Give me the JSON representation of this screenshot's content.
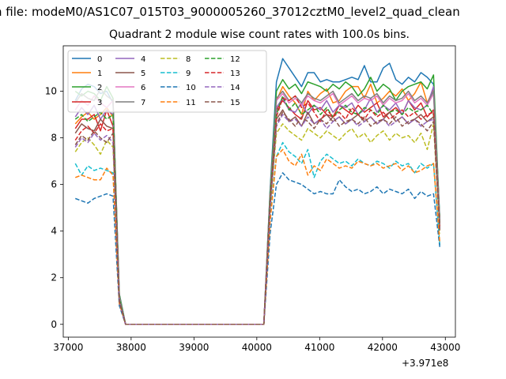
{
  "suptitle": "n file: modeM0/AS1C07_015T03_9000005260_37012cztM0_level2_quad_clean",
  "chart_data": {
    "type": "line",
    "title": "Quadrant 2 module wise count rates with 100.0s bins.",
    "xlabel": "",
    "ylabel": "",
    "x_offset_label": "+3.971e8",
    "xlim": [
      36920,
      43160
    ],
    "ylim": [
      -0.55,
      11.95
    ],
    "x_ticks": [
      37000,
      38000,
      39000,
      40000,
      41000,
      42000,
      43000
    ],
    "x_tick_labels": [
      "37000",
      "38000",
      "39000",
      "40000",
      "41000",
      "42000",
      "43000"
    ],
    "y_ticks": [
      0,
      2,
      4,
      6,
      8,
      10
    ],
    "y_tick_labels": [
      "0",
      "2",
      "4",
      "6",
      "8",
      "10"
    ],
    "grid": false,
    "legend_placement": "top-left",
    "x": [
      37112,
      37212,
      37312,
      37412,
      37512,
      37612,
      37712,
      37812,
      37912,
      38012,
      38112,
      38212,
      38312,
      38412,
      38512,
      38612,
      38712,
      38812,
      38912,
      39012,
      39112,
      39212,
      39312,
      39412,
      39512,
      39612,
      39712,
      39812,
      39912,
      40012,
      40112,
      40212,
      40312,
      40412,
      40512,
      40612,
      40712,
      40812,
      40912,
      41012,
      41112,
      41212,
      41312,
      41412,
      41512,
      41612,
      41712,
      41812,
      41912,
      42012,
      42112,
      42212,
      42312,
      42412,
      42512,
      42612,
      42712,
      42812,
      42912
    ],
    "series": [
      {
        "name": "0",
        "color": "#1f77b4",
        "style": "solid",
        "values": [
          9.6,
          10.1,
          10.3,
          10.2,
          9.9,
          10.0,
          9.5,
          1.3,
          0,
          0,
          0,
          0,
          0,
          0,
          0,
          0,
          0,
          0,
          0,
          0,
          0,
          0,
          0,
          0,
          0,
          0,
          0,
          0,
          0,
          0,
          0,
          5.8,
          10.4,
          11.4,
          11.0,
          10.6,
          10.2,
          10.8,
          10.8,
          10.4,
          10.5,
          10.4,
          10.4,
          10.5,
          10.6,
          10.5,
          11.1,
          10.4,
          10.4,
          11.0,
          11.2,
          10.5,
          10.3,
          10.6,
          10.4,
          10.8,
          10.6,
          10.3,
          4.5
        ]
      },
      {
        "name": "1",
        "color": "#ff7f0e",
        "style": "solid",
        "values": [
          8.6,
          8.9,
          9.1,
          8.8,
          9.0,
          9.3,
          8.9,
          1.2,
          0,
          0,
          0,
          0,
          0,
          0,
          0,
          0,
          0,
          0,
          0,
          0,
          0,
          0,
          0,
          0,
          0,
          0,
          0,
          0,
          0,
          0,
          0,
          5.5,
          9.6,
          10.2,
          9.8,
          9.5,
          9.0,
          10.0,
          9.6,
          9.9,
          10.1,
          9.5,
          9.6,
          10.0,
          10.2,
          10.2,
          9.7,
          10.3,
          9.5,
          9.7,
          10.0,
          9.8,
          10.1,
          9.6,
          9.9,
          10.4,
          9.5,
          10.1,
          4.3
        ]
      },
      {
        "name": "2",
        "color": "#2ca02c",
        "style": "solid",
        "values": [
          10.0,
          9.8,
          10.0,
          9.9,
          9.6,
          10.2,
          9.7,
          1.3,
          0,
          0,
          0,
          0,
          0,
          0,
          0,
          0,
          0,
          0,
          0,
          0,
          0,
          0,
          0,
          0,
          0,
          0,
          0,
          0,
          0,
          0,
          0,
          5.7,
          10.0,
          10.5,
          10.1,
          10.3,
          9.9,
          10.4,
          10.3,
          10.2,
          10.0,
          10.3,
          10.1,
          10.4,
          10.2,
          9.8,
          10.1,
          10.6,
          10.0,
          10.3,
          10.1,
          9.6,
          10.0,
          10.2,
          10.3,
          10.4,
          10.1,
          10.7,
          4.4
        ]
      },
      {
        "name": "3",
        "color": "#d62728",
        "style": "solid",
        "values": [
          8.4,
          8.8,
          8.8,
          9.0,
          8.3,
          9.2,
          8.5,
          1.1,
          0,
          0,
          0,
          0,
          0,
          0,
          0,
          0,
          0,
          0,
          0,
          0,
          0,
          0,
          0,
          0,
          0,
          0,
          0,
          0,
          0,
          0,
          0,
          5.5,
          9.2,
          9.6,
          9.3,
          9.0,
          8.8,
          9.6,
          9.2,
          9.3,
          9.0,
          8.9,
          9.4,
          9.2,
          9.0,
          9.4,
          9.1,
          9.3,
          9.5,
          8.9,
          9.1,
          9.3,
          9.0,
          9.6,
          9.2,
          9.5,
          8.9,
          9.2,
          4.2
        ]
      },
      {
        "name": "4",
        "color": "#9467bd",
        "style": "solid",
        "values": [
          8.9,
          9.3,
          9.0,
          9.4,
          8.8,
          9.2,
          9.0,
          1.2,
          0,
          0,
          0,
          0,
          0,
          0,
          0,
          0,
          0,
          0,
          0,
          0,
          0,
          0,
          0,
          0,
          0,
          0,
          0,
          0,
          0,
          0,
          0,
          5.5,
          9.3,
          9.7,
          9.2,
          9.1,
          9.5,
          9.0,
          9.4,
          9.2,
          9.6,
          9.1,
          9.4,
          9.3,
          9.5,
          9.0,
          9.2,
          9.7,
          9.1,
          9.4,
          9.2,
          9.5,
          9.0,
          9.6,
          9.3,
          9.2,
          9.4,
          10.2,
          4.3
        ]
      },
      {
        "name": "5",
        "color": "#8c564b",
        "style": "solid",
        "values": [
          8.2,
          8.6,
          8.4,
          8.3,
          8.8,
          8.5,
          8.4,
          1.1,
          0,
          0,
          0,
          0,
          0,
          0,
          0,
          0,
          0,
          0,
          0,
          0,
          0,
          0,
          0,
          0,
          0,
          0,
          0,
          0,
          0,
          0,
          0,
          5.3,
          8.8,
          9.2,
          8.7,
          8.9,
          8.5,
          9.1,
          8.6,
          8.8,
          9.0,
          8.7,
          8.9,
          8.6,
          8.8,
          9.0,
          8.7,
          8.9,
          8.6,
          8.8,
          9.1,
          8.7,
          8.9,
          8.6,
          8.8,
          9.0,
          8.7,
          8.9,
          4.1
        ]
      },
      {
        "name": "6",
        "color": "#e377c2",
        "style": "solid",
        "values": [
          9.2,
          9.6,
          9.4,
          9.8,
          9.5,
          9.3,
          9.6,
          1.2,
          0,
          0,
          0,
          0,
          0,
          0,
          0,
          0,
          0,
          0,
          0,
          0,
          0,
          0,
          0,
          0,
          0,
          0,
          0,
          0,
          0,
          0,
          0,
          5.6,
          9.6,
          9.9,
          9.5,
          9.7,
          9.4,
          9.8,
          9.6,
          9.5,
          9.7,
          9.9,
          9.4,
          9.6,
          9.8,
          9.5,
          9.7,
          9.6,
          9.8,
          9.4,
          9.7,
          9.5,
          9.6,
          9.9,
          9.5,
          9.7,
          9.4,
          9.9,
          4.3
        ]
      },
      {
        "name": "7",
        "color": "#7f7f7f",
        "style": "solid",
        "values": [
          9.5,
          9.9,
          9.7,
          9.6,
          10.1,
          9.8,
          9.6,
          1.2,
          0,
          0,
          0,
          0,
          0,
          0,
          0,
          0,
          0,
          0,
          0,
          0,
          0,
          0,
          0,
          0,
          0,
          0,
          0,
          0,
          0,
          0,
          0,
          5.6,
          9.7,
          10.0,
          9.6,
          9.8,
          9.5,
          9.9,
          9.7,
          9.6,
          9.8,
          10.0,
          9.5,
          9.7,
          9.9,
          9.6,
          9.8,
          9.7,
          9.9,
          9.5,
          9.8,
          9.6,
          9.7,
          10.0,
          9.6,
          9.8,
          9.5,
          10.0,
          4.4
        ]
      },
      {
        "name": "8",
        "color": "#bcbd22",
        "style": "dashed",
        "values": [
          7.4,
          7.8,
          8.0,
          7.7,
          7.3,
          7.9,
          7.6,
          1.0,
          0,
          0,
          0,
          0,
          0,
          0,
          0,
          0,
          0,
          0,
          0,
          0,
          0,
          0,
          0,
          0,
          0,
          0,
          0,
          0,
          0,
          0,
          0,
          5.0,
          8.2,
          8.6,
          8.3,
          8.1,
          7.9,
          8.4,
          8.2,
          8.0,
          8.3,
          8.1,
          7.9,
          8.2,
          8.4,
          8.0,
          8.2,
          7.8,
          8.1,
          8.3,
          7.9,
          8.2,
          8.0,
          8.1,
          7.8,
          8.2,
          7.5,
          8.6,
          3.9
        ]
      },
      {
        "name": "9",
        "color": "#17becf",
        "style": "dashed",
        "values": [
          6.9,
          6.4,
          6.8,
          6.6,
          6.7,
          6.6,
          6.5,
          0.9,
          0,
          0,
          0,
          0,
          0,
          0,
          0,
          0,
          0,
          0,
          0,
          0,
          0,
          0,
          0,
          0,
          0,
          0,
          0,
          0,
          0,
          0,
          0,
          4.6,
          7.2,
          7.8,
          7.4,
          7.2,
          6.9,
          7.5,
          6.3,
          7.0,
          7.3,
          7.1,
          6.9,
          7.0,
          6.8,
          7.1,
          6.9,
          6.8,
          7.0,
          6.9,
          6.7,
          7.0,
          6.8,
          6.9,
          6.5,
          6.9,
          6.7,
          6.9,
          3.4
        ]
      },
      {
        "name": "10",
        "color": "#1f77b4",
        "style": "dashed",
        "values": [
          5.4,
          5.3,
          5.2,
          5.4,
          5.5,
          5.6,
          5.5,
          0.8,
          0,
          0,
          0,
          0,
          0,
          0,
          0,
          0,
          0,
          0,
          0,
          0,
          0,
          0,
          0,
          0,
          0,
          0,
          0,
          0,
          0,
          0,
          0,
          3.9,
          6.0,
          6.5,
          6.2,
          6.1,
          6.0,
          5.8,
          5.6,
          5.7,
          5.6,
          5.6,
          6.2,
          5.9,
          5.7,
          5.8,
          5.6,
          5.7,
          5.9,
          5.6,
          5.8,
          5.7,
          5.6,
          5.8,
          5.4,
          5.7,
          5.5,
          5.6,
          3.3
        ]
      },
      {
        "name": "11",
        "color": "#ff7f0e",
        "style": "dashed",
        "values": [
          6.3,
          6.4,
          6.3,
          6.2,
          6.2,
          6.7,
          6.4,
          0.9,
          0,
          0,
          0,
          0,
          0,
          0,
          0,
          0,
          0,
          0,
          0,
          0,
          0,
          0,
          0,
          0,
          0,
          0,
          0,
          0,
          0,
          0,
          0,
          4.4,
          7.2,
          7.5,
          7.0,
          6.8,
          7.3,
          6.4,
          6.8,
          6.6,
          7.1,
          6.9,
          6.7,
          6.8,
          6.7,
          7.0,
          6.9,
          6.8,
          6.9,
          6.7,
          6.8,
          6.9,
          6.6,
          6.8,
          6.5,
          6.6,
          6.8,
          6.9,
          3.5
        ]
      },
      {
        "name": "12",
        "color": "#2ca02c",
        "style": "dashed",
        "values": [
          8.8,
          9.0,
          8.7,
          8.9,
          9.1,
          8.8,
          9.0,
          1.1,
          0,
          0,
          0,
          0,
          0,
          0,
          0,
          0,
          0,
          0,
          0,
          0,
          0,
          0,
          0,
          0,
          0,
          0,
          0,
          0,
          0,
          0,
          0,
          5.4,
          9.0,
          9.8,
          9.2,
          9.5,
          9.0,
          9.2,
          9.4,
          9.0,
          9.3,
          8.9,
          9.2,
          9.4,
          9.1,
          9.0,
          9.3,
          9.2,
          9.0,
          9.4,
          9.1,
          9.2,
          9.0,
          9.3,
          9.1,
          9.2,
          9.4,
          9.0,
          4.3
        ]
      },
      {
        "name": "13",
        "color": "#d62728",
        "style": "dashed",
        "values": [
          7.9,
          8.3,
          8.5,
          8.2,
          8.6,
          8.3,
          8.4,
          1.0,
          0,
          0,
          0,
          0,
          0,
          0,
          0,
          0,
          0,
          0,
          0,
          0,
          0,
          0,
          0,
          0,
          0,
          0,
          0,
          0,
          0,
          0,
          0,
          5.2,
          8.9,
          9.7,
          9.6,
          9.8,
          9.3,
          9.5,
          9.1,
          8.7,
          9.2,
          8.9,
          9.1,
          8.8,
          9.3,
          9.0,
          8.8,
          9.2,
          8.9,
          9.1,
          8.8,
          9.0,
          9.2,
          8.9,
          9.1,
          8.8,
          9.0,
          9.1,
          4.2
        ]
      },
      {
        "name": "14",
        "color": "#9467bd",
        "style": "dashed",
        "values": [
          7.6,
          8.0,
          7.8,
          8.2,
          7.9,
          8.1,
          7.8,
          1.0,
          0,
          0,
          0,
          0,
          0,
          0,
          0,
          0,
          0,
          0,
          0,
          0,
          0,
          0,
          0,
          0,
          0,
          0,
          0,
          0,
          0,
          0,
          0,
          5.0,
          8.5,
          9.0,
          8.7,
          8.8,
          8.5,
          8.9,
          8.6,
          8.8,
          8.4,
          8.7,
          8.9,
          8.6,
          8.8,
          8.5,
          8.7,
          8.9,
          8.6,
          8.8,
          8.5,
          8.7,
          8.9,
          8.6,
          8.8,
          8.5,
          8.7,
          8.8,
          4.1
        ]
      },
      {
        "name": "15",
        "color": "#8c564b",
        "style": "dashed",
        "values": [
          7.7,
          8.1,
          7.9,
          8.3,
          8.0,
          7.8,
          8.2,
          1.0,
          0,
          0,
          0,
          0,
          0,
          0,
          0,
          0,
          0,
          0,
          0,
          0,
          0,
          0,
          0,
          0,
          0,
          0,
          0,
          0,
          0,
          0,
          0,
          5.1,
          8.6,
          9.1,
          8.8,
          8.5,
          8.9,
          8.7,
          8.4,
          8.8,
          8.6,
          8.9,
          8.5,
          8.7,
          8.8,
          8.6,
          8.9,
          8.5,
          8.7,
          8.8,
          8.6,
          8.9,
          8.5,
          8.7,
          8.8,
          8.6,
          8.3,
          8.7,
          4.0
        ]
      }
    ]
  }
}
